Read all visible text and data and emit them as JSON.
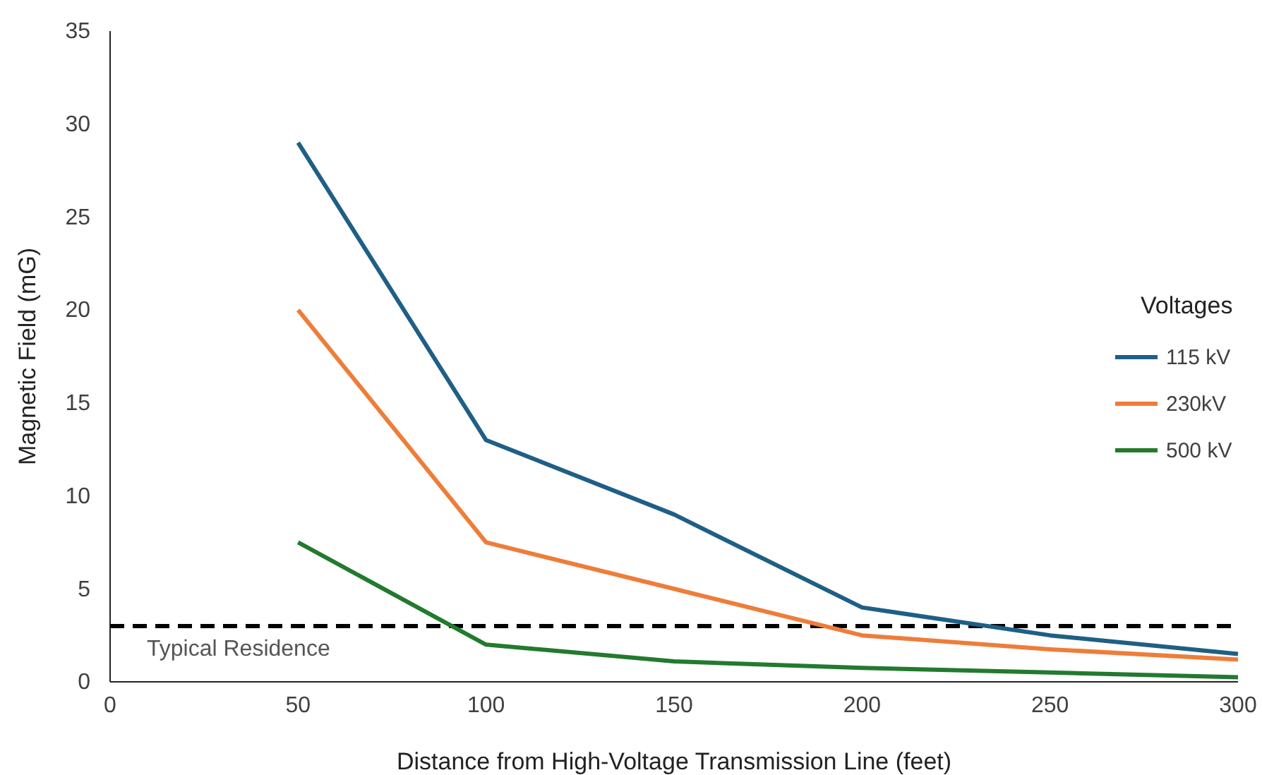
{
  "chart_data": {
    "type": "line",
    "xlabel": "Distance from High-Voltage Transmission Line (feet)",
    "ylabel": "Magnetic Field (mG)",
    "legend_title": "Voltages",
    "x": [
      50,
      100,
      150,
      200,
      250,
      300
    ],
    "series": [
      {
        "name": "115 kV",
        "color": "#1f5f86",
        "values": [
          29,
          13,
          9,
          4,
          2.5,
          1.5
        ]
      },
      {
        "name": "230kV",
        "color": "#ee7d3a",
        "values": [
          20,
          7.5,
          5,
          2.5,
          1.75,
          1.2
        ]
      },
      {
        "name": "500 kV",
        "color": "#237a2e",
        "values": [
          7.5,
          2,
          1.1,
          0.75,
          0.5,
          0.25
        ]
      }
    ],
    "xlim": [
      0,
      300
    ],
    "xticks": [
      0,
      50,
      100,
      150,
      200,
      250,
      300
    ],
    "ylim": [
      0,
      35
    ],
    "yticks": [
      0,
      5,
      10,
      15,
      20,
      25,
      30,
      35
    ],
    "ref_lines": [
      {
        "axis": "y",
        "value": 3,
        "label": "Typical Residence",
        "color": "#000000",
        "line_style": "dashed"
      }
    ],
    "grid": false,
    "legend": "right",
    "marker": "none",
    "line_style": "solid"
  }
}
